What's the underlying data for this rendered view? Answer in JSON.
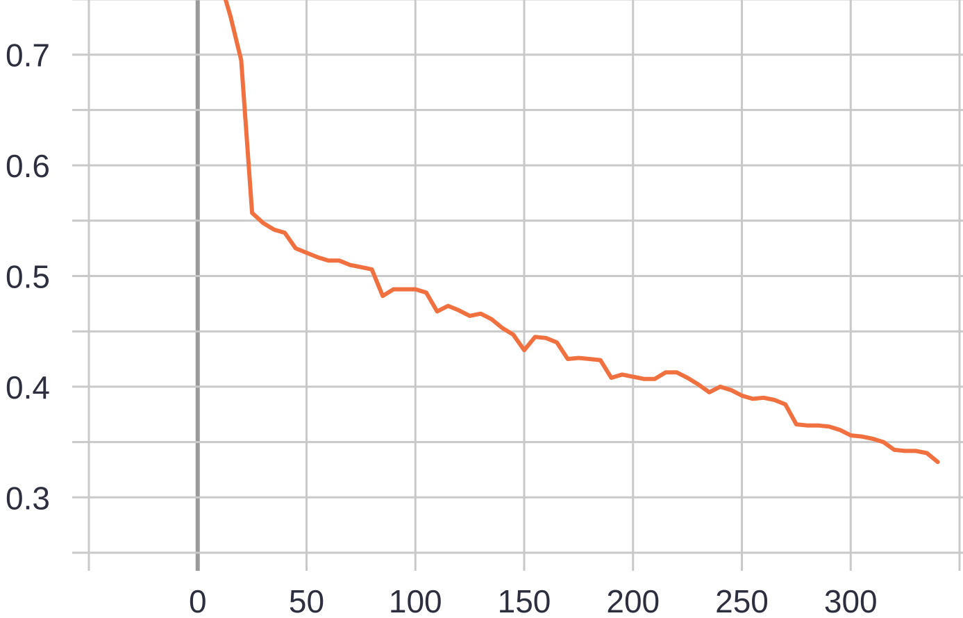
{
  "chart_data": {
    "type": "line",
    "title": "",
    "xlabel": "",
    "ylabel": "",
    "xlim": [
      -50,
      350
    ],
    "ylim": [
      0.25,
      0.75
    ],
    "grid": true,
    "x_ticks": [
      0,
      50,
      100,
      150,
      200,
      250,
      300
    ],
    "x_tick_labels": [
      "0",
      "50",
      "100",
      "150",
      "200",
      "250",
      "300"
    ],
    "y_ticks": [
      0.3,
      0.4,
      0.5,
      0.6,
      0.7
    ],
    "y_tick_labels": [
      "0.3",
      "0.4",
      "0.5",
      "0.6",
      "0.7"
    ],
    "series": [
      {
        "color": "#f07040",
        "x": [
          12,
          15,
          20,
          25,
          30,
          35,
          40,
          45,
          50,
          55,
          60,
          65,
          70,
          75,
          80,
          85,
          90,
          95,
          100,
          105,
          110,
          115,
          120,
          125,
          130,
          135,
          140,
          145,
          150,
          155,
          160,
          165,
          170,
          175,
          180,
          185,
          190,
          195,
          200,
          205,
          210,
          215,
          220,
          225,
          230,
          235,
          240,
          245,
          250,
          255,
          260,
          265,
          270,
          275,
          280,
          285,
          290,
          295,
          300,
          305,
          310,
          315,
          320,
          325,
          330,
          335,
          340
        ],
        "values": [
          0.755,
          0.735,
          0.695,
          0.557,
          0.548,
          0.542,
          0.539,
          0.525,
          0.521,
          0.517,
          0.514,
          0.514,
          0.51,
          0.508,
          0.506,
          0.482,
          0.488,
          0.488,
          0.488,
          0.485,
          0.468,
          0.473,
          0.469,
          0.464,
          0.466,
          0.461,
          0.453,
          0.447,
          0.433,
          0.445,
          0.444,
          0.44,
          0.425,
          0.426,
          0.425,
          0.424,
          0.408,
          0.411,
          0.409,
          0.407,
          0.407,
          0.413,
          0.413,
          0.408,
          0.402,
          0.395,
          0.4,
          0.397,
          0.392,
          0.389,
          0.39,
          0.388,
          0.384,
          0.366,
          0.365,
          0.365,
          0.364,
          0.361,
          0.356,
          0.355,
          0.353,
          0.35,
          0.343,
          0.342,
          0.342,
          0.34,
          0.332
        ]
      }
    ]
  }
}
